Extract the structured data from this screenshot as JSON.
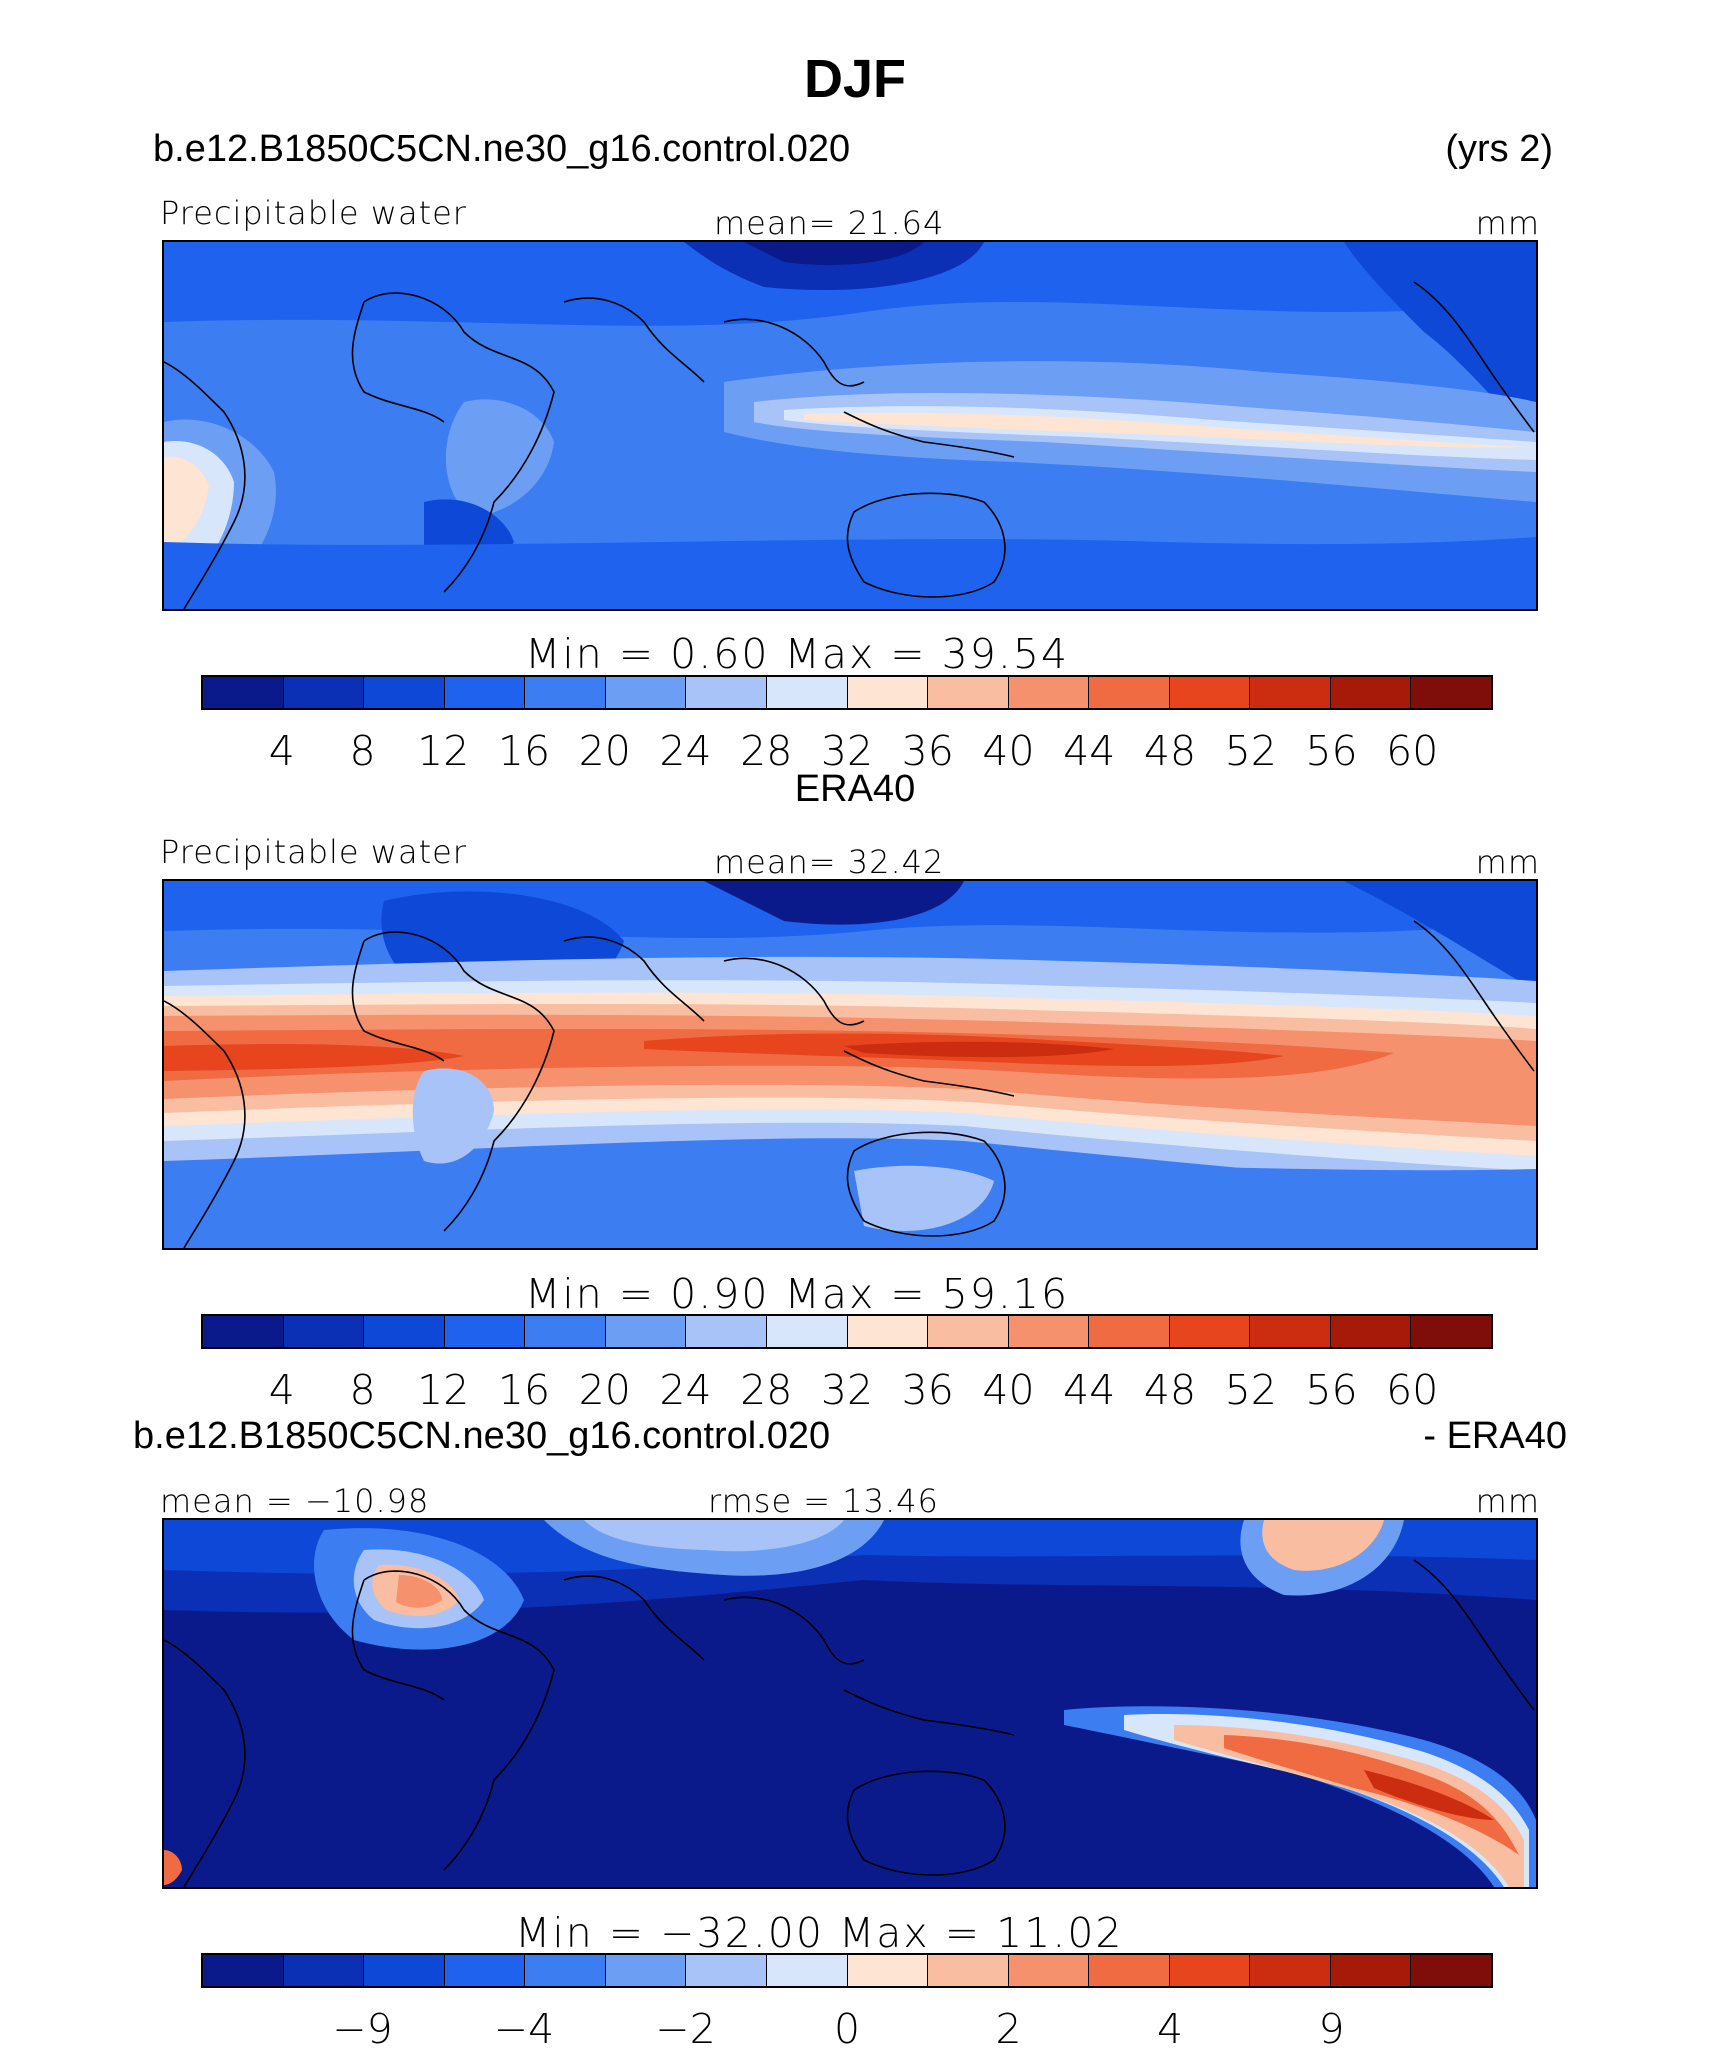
{
  "figure_title": "DJF",
  "palette": [
    "#0a1a8a",
    "#0b2fb5",
    "#0d48d6",
    "#1f62ee",
    "#3c7df2",
    "#6c9ef4",
    "#a7c3f7",
    "#d7e6fb",
    "#fde4d3",
    "#f9bea2",
    "#f6916e",
    "#f06a42",
    "#e6451e",
    "#cc2c10",
    "#a71a0a",
    "#7f0e0a"
  ],
  "chart_data": [
    {
      "type": "heatmap",
      "case": "b.e12.B1850C5CN.ne30_g16.control.020",
      "years_note": "(yrs 2)",
      "variable": "Precipitable water",
      "mean_text": "mean=   21.64",
      "units": "mm",
      "minmax_text": "Min  =      0.60  Max  =    39.54",
      "levels": [
        "4",
        "8",
        "12",
        "16",
        "20",
        "24",
        "28",
        "32",
        "36",
        "40",
        "44",
        "48",
        "52",
        "56",
        "60"
      ]
    },
    {
      "type": "heatmap",
      "case": "ERA40",
      "variable": "Precipitable water",
      "mean_text": "mean=   32.42",
      "units": "mm",
      "minmax_text": "Min  =      0.90  Max  =    59.16",
      "levels": [
        "4",
        "8",
        "12",
        "16",
        "20",
        "24",
        "28",
        "32",
        "36",
        "40",
        "44",
        "48",
        "52",
        "56",
        "60"
      ]
    },
    {
      "type": "heatmap",
      "case": "b.e12.B1850C5CN.ne30_g16.control.020",
      "diff_label": "- ERA40",
      "mean_text": "mean  =  −10.98",
      "rmse_text": "rmse  =    13.46",
      "units": "mm",
      "minmax_text": "Min  =  −32.00  Max  =    11.02",
      "levels": [
        "−9",
        "",
        "−4",
        "",
        "−2",
        "",
        "0",
        "",
        "2",
        "",
        "4",
        "",
        "9"
      ]
    }
  ]
}
